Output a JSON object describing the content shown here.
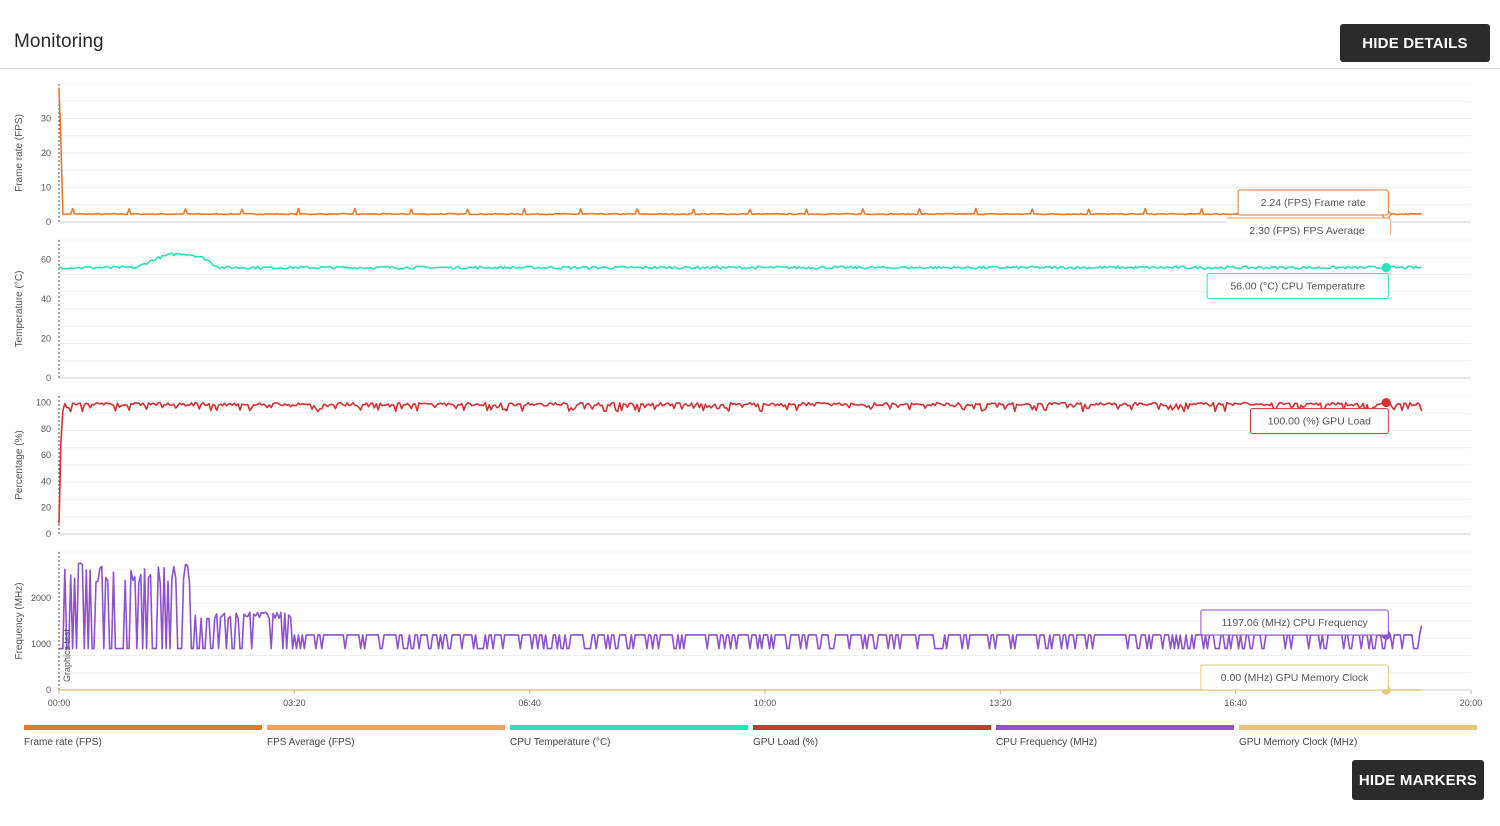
{
  "header": {
    "title": "Monitoring",
    "hide_details_label": "HIDE DETAILS",
    "hide_markers_label": "HIDE MARKERS"
  },
  "chart_data": {
    "type": "line",
    "x_ticks": [
      "00:00",
      "03:20",
      "06:40",
      "10:00",
      "13:20",
      "16:40",
      "20:00"
    ],
    "x_range_seconds": [
      0,
      1200
    ],
    "grid": true,
    "marker_label": "Graphics test",
    "panels": [
      {
        "id": "fps",
        "ylabel": "Frame rate (FPS)",
        "ylim": [
          0,
          40
        ],
        "yticks": [
          0,
          10,
          20,
          30
        ],
        "series": [
          {
            "name": "Frame rate (FPS)",
            "color": "#e8792b",
            "baseline": 2.3,
            "start_value": 39,
            "noise": 0.3,
            "spikes": 1.5
          },
          {
            "name": "FPS Average (FPS)",
            "color": "#f0a060",
            "baseline": 2.3,
            "noise": 0,
            "hidden_line": true
          }
        ],
        "tooltips": [
          {
            "text": "2.24 (FPS) Frame rate",
            "color": "#e8792b",
            "value": 2.24,
            "hollow": true
          },
          {
            "text": "2.30 (FPS) FPS Average",
            "color": "#f0a060",
            "value": 2.3,
            "partial": true
          }
        ]
      },
      {
        "id": "temp",
        "ylabel": "Temperature (°C)",
        "ylim": [
          0,
          70
        ],
        "yticks": [
          0,
          20,
          40,
          60
        ],
        "series": [
          {
            "name": "CPU Temperature (°C)",
            "color": "#27e3bc",
            "baseline": 56,
            "noise": 0.7,
            "bump": {
              "from": 40,
              "to": 85,
              "peak": 63
            }
          }
        ],
        "tooltips": [
          {
            "text": "56.00 (°C) CPU Temperature",
            "color": "#27e3bc",
            "value": 56
          }
        ]
      },
      {
        "id": "load",
        "ylabel": "Percentage (%)",
        "ylim": [
          0,
          105
        ],
        "yticks": [
          0,
          20,
          40,
          60,
          80,
          100
        ],
        "series": [
          {
            "name": "GPU Load (%)",
            "color": "#d43232",
            "baseline": 100,
            "start_value": 8,
            "dips": 93
          }
        ],
        "tooltips": [
          {
            "text": "100.00 (%) GPU Load",
            "color": "#d43232",
            "value": 100
          }
        ]
      },
      {
        "id": "freq",
        "ylabel": "Frequency (MHz)",
        "ylim": [
          0,
          3000
        ],
        "yticks": [
          0,
          1000,
          2000
        ],
        "series": [
          {
            "name": "CPU Frequency (MHz)",
            "color": "#8e52cc",
            "high": 1197,
            "low": 900,
            "start_high": 2800
          },
          {
            "name": "GPU Memory Clock (MHz)",
            "color": "#e6c77a",
            "baseline": 0
          }
        ],
        "tooltips": [
          {
            "text": "1197.06 (MHz) CPU Frequency",
            "color": "#8e52cc",
            "value": 1197.06
          },
          {
            "text": "0.00 (MHz) GPU Memory Clock",
            "color": "#e6c77a",
            "value": 0
          }
        ]
      }
    ],
    "legend": [
      {
        "label": "Frame rate (FPS)",
        "color": "#e8792b"
      },
      {
        "label": "FPS Average (FPS)",
        "color": "#f0a060"
      },
      {
        "label": "CPU Temperature (°C)",
        "color": "#27e3bc"
      },
      {
        "label": "GPU Load (%)",
        "color": "#d43232"
      },
      {
        "label": "CPU Frequency (MHz)",
        "color": "#8e52cc"
      },
      {
        "label": "GPU Memory Clock (MHz)",
        "color": "#e6c77a"
      }
    ]
  }
}
